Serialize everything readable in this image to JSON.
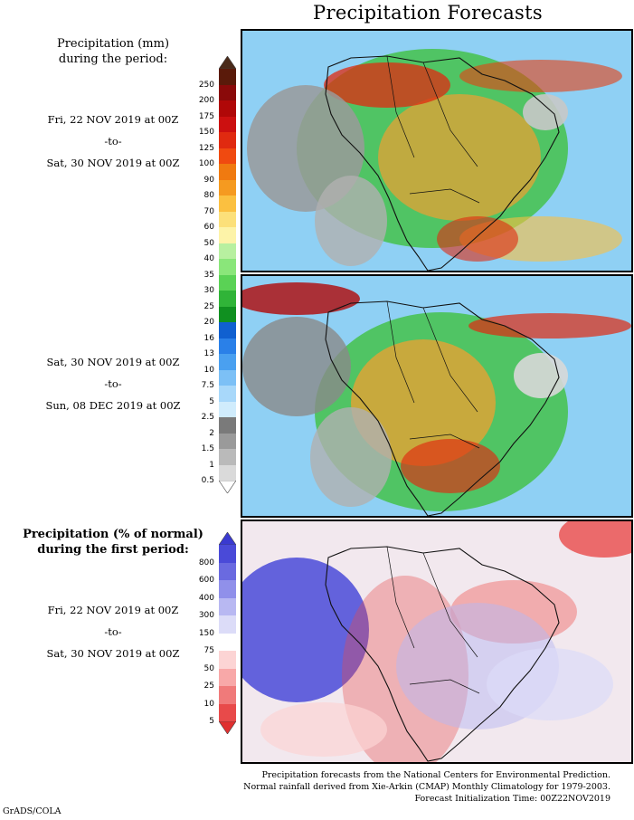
{
  "title": "Precipitation Forecasts",
  "period1": {
    "header": [
      "Precipitation (mm)",
      "during the period:"
    ],
    "from": "Fri, 22 NOV 2019 at 00Z",
    "sep": "-to-",
    "to": "Sat, 30 NOV 2019 at 00Z"
  },
  "period2": {
    "from": "Sat, 30 NOV 2019 at 00Z",
    "sep": "-to-",
    "to": "Sun, 08 DEC 2019 at 00Z"
  },
  "anomaly": {
    "header": [
      "Precipitation (% of normal)",
      "during the first period:"
    ],
    "from": "Fri, 22 NOV 2019 at 00Z",
    "sep": "-to-",
    "to": "Sat, 30 NOV 2019 at 00Z"
  },
  "mm_scale": {
    "labels": [
      "250",
      "200",
      "175",
      "150",
      "125",
      "100",
      "90",
      "80",
      "70",
      "60",
      "50",
      "40",
      "35",
      "30",
      "25",
      "20",
      "16",
      "13",
      "10",
      "7.5",
      "5",
      "2.5",
      "2",
      "1.5",
      "1",
      "0.5"
    ],
    "colors": [
      "#5a1a0a",
      "#8a0a0a",
      "#b00808",
      "#cc1010",
      "#e02a10",
      "#f04a10",
      "#f07a10",
      "#f59a20",
      "#fbc040",
      "#fce07a",
      "#fdf3a8",
      "#b8f0a0",
      "#8ae67a",
      "#5ad255",
      "#30b438",
      "#109020",
      "#1060d0",
      "#2a80e8",
      "#4aa0f0",
      "#7cc0f6",
      "#a8d8fa",
      "#d0ecfc",
      "#7a7a7a",
      "#9a9a9a",
      "#bababa",
      "#dadada"
    ],
    "top_arrow_color": "#4a2a1a",
    "bottom_arrow_color": "#ffffff"
  },
  "pct_scale": {
    "labels": [
      "800",
      "600",
      "400",
      "300",
      "150",
      "75",
      "50",
      "25",
      "10",
      "5"
    ],
    "colors": [
      "#4a4ad8",
      "#6a6ae0",
      "#9090ea",
      "#b8b8f2",
      "#dcdcf8",
      "#ffffff",
      "#fcd4d4",
      "#f8a8a8",
      "#f07a7a",
      "#e84a4a"
    ],
    "top_arrow_color": "#3a3ad0",
    "bottom_arrow_color": "#e03030"
  },
  "footer": [
    "Precipitation forecasts from the National Centers for Environmental Prediction.",
    "Normal rainfall derived from Xie-Arkin (CMAP) Monthly Climatology for 1979-2003.",
    "Forecast Initialization Time: 00Z22NOV2019"
  ],
  "credit": "GrADS/COLA"
}
